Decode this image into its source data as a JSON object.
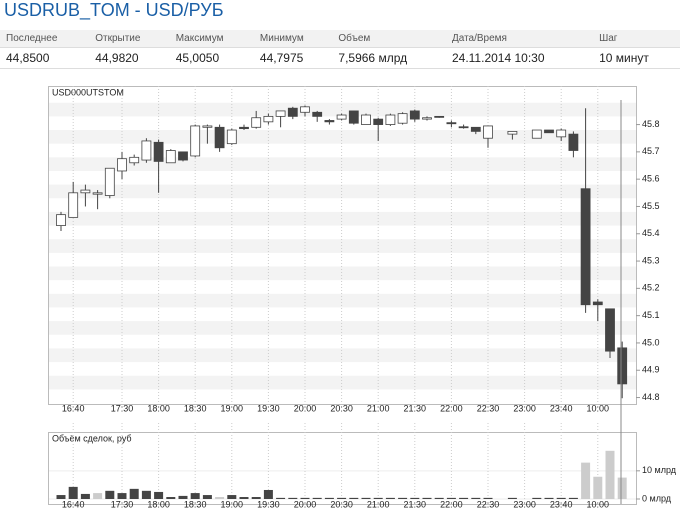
{
  "header": {
    "title": "USDRUB_TOM - USD/РУБ"
  },
  "table": {
    "columns": [
      "Последнее",
      "Открытие",
      "Максимум",
      "Минимум",
      "Объем",
      "Дата/Время",
      "Шаг"
    ],
    "values": [
      "44,8500",
      "44,9820",
      "45,0050",
      "44,7975",
      "7,5966 млрд",
      "24.11.2014 10:30",
      "10 минут"
    ]
  },
  "chart_data": [
    {
      "type": "candlestick",
      "title": "USD000UTSTOM",
      "categories": [
        null,
        "16:40",
        null,
        null,
        null,
        "17:30",
        null,
        null,
        "18:00",
        null,
        null,
        "18:30",
        null,
        null,
        "19:00",
        null,
        null,
        "19:30",
        null,
        null,
        "20:00",
        null,
        null,
        "20:30",
        null,
        null,
        "21:00",
        null,
        null,
        "21:30",
        null,
        null,
        "22:00",
        null,
        null,
        "22:30",
        null,
        null,
        "23:00",
        null,
        null,
        "23:40",
        null,
        null,
        "10:00",
        null,
        null
      ],
      "open": [
        45.43,
        45.46,
        45.55,
        45.545,
        45.54,
        45.63,
        45.66,
        45.67,
        45.735,
        45.66,
        45.7,
        45.685,
        45.79,
        45.79,
        45.73,
        45.79,
        45.79,
        45.81,
        45.83,
        45.86,
        45.845,
        45.845,
        45.815,
        45.82,
        45.85,
        45.8,
        45.82,
        45.8,
        45.805,
        45.85,
        45.82,
        45.83,
        45.807,
        45.792,
        45.79,
        45.75,
        null,
        45.765,
        null,
        45.75,
        45.78,
        45.755,
        45.765,
        45.565,
        45.15,
        45.125,
        44.982
      ],
      "high": [
        45.48,
        45.59,
        45.58,
        45.56,
        45.64,
        45.7,
        45.69,
        45.75,
        45.745,
        45.71,
        45.7,
        45.8,
        45.8,
        45.8,
        45.785,
        45.8,
        45.85,
        45.84,
        45.85,
        45.865,
        45.87,
        45.85,
        45.82,
        45.84,
        45.85,
        45.84,
        45.825,
        45.84,
        45.845,
        45.855,
        45.83,
        45.83,
        45.815,
        45.8,
        45.79,
        45.795,
        null,
        45.775,
        null,
        45.78,
        45.78,
        45.785,
        45.775,
        45.86,
        45.16,
        45.125,
        45.005
      ],
      "low": [
        45.41,
        45.46,
        45.5,
        45.49,
        45.53,
        45.6,
        45.65,
        45.66,
        45.55,
        45.66,
        45.665,
        45.68,
        45.73,
        45.7,
        45.725,
        45.78,
        45.785,
        45.8,
        45.79,
        45.82,
        45.83,
        45.81,
        45.8,
        45.815,
        45.8,
        45.8,
        45.74,
        45.795,
        45.8,
        45.81,
        45.815,
        45.825,
        45.79,
        45.785,
        45.765,
        45.715,
        null,
        45.745,
        null,
        45.75,
        45.77,
        45.74,
        45.68,
        45.11,
        45.08,
        44.945,
        44.7975
      ],
      "close": [
        45.47,
        45.55,
        45.56,
        45.55,
        45.64,
        45.675,
        45.68,
        45.74,
        45.665,
        45.705,
        45.67,
        45.795,
        45.795,
        45.715,
        45.78,
        45.785,
        45.825,
        45.83,
        45.85,
        45.83,
        45.865,
        45.83,
        45.81,
        45.835,
        45.805,
        45.835,
        45.8,
        45.835,
        45.84,
        45.82,
        45.825,
        45.827,
        45.803,
        45.789,
        45.775,
        45.795,
        null,
        45.775,
        null,
        45.78,
        45.77,
        45.78,
        45.705,
        45.14,
        45.14,
        44.97,
        44.85
      ],
      "up_color": "#ffffff",
      "down_color": "#444444",
      "ylim": [
        44.78,
        45.89
      ],
      "yticks": [
        {
          "value": 44.8,
          "label": "44.8"
        },
        44.9,
        {
          "value": 45,
          "label": "45.0"
        },
        45.1,
        45.2,
        45.3,
        45.4,
        45.5,
        45.6,
        45.7,
        45.8
      ],
      "grid": true
    },
    {
      "type": "bar",
      "title": "Объём сделок, руб",
      "categories": [
        null,
        "16:40",
        null,
        null,
        null,
        "17:30",
        null,
        null,
        "18:00",
        null,
        null,
        "18:30",
        null,
        null,
        "19:00",
        null,
        null,
        "19:30",
        null,
        null,
        "20:00",
        null,
        null,
        "20:30",
        null,
        null,
        "21:00",
        null,
        null,
        "21:30",
        null,
        null,
        "22:00",
        null,
        null,
        "22:30",
        null,
        null,
        "23:00",
        null,
        null,
        "23:40",
        null,
        null,
        "10:00",
        null,
        null
      ],
      "values": [
        1.4,
        4.3,
        1.8,
        2.1,
        2.9,
        2.1,
        3.6,
        2.9,
        2.5,
        0.7,
        1.1,
        2.1,
        1.4,
        0.7,
        1.4,
        0.7,
        0.7,
        3.2,
        0.4,
        0.4,
        0.4,
        0.4,
        0.4,
        0.4,
        0.4,
        0.4,
        0.4,
        0.4,
        0.4,
        0.4,
        0.4,
        0.4,
        0.4,
        0.4,
        0.4,
        0.4,
        null,
        0.4,
        null,
        0.4,
        0.4,
        0.4,
        0.4,
        12.9,
        7.9,
        17.1,
        7.5966
      ],
      "colors": [
        "#444",
        "#444",
        "#444",
        "#ccc",
        "#444",
        "#444",
        "#444",
        "#444",
        "#444",
        "#444",
        "#444",
        "#444",
        "#444",
        "#ccc",
        "#444",
        "#444",
        "#444",
        "#444",
        "#444",
        "#444",
        "#444",
        "#444",
        "#444",
        "#444",
        "#444",
        "#444",
        "#444",
        "#444",
        "#444",
        "#444",
        "#444",
        "#444",
        "#444",
        "#444",
        "#444",
        "#444",
        null,
        "#444",
        null,
        "#444",
        "#444",
        "#444",
        "#444",
        "#ccc",
        "#ccc",
        "#ccc",
        "#ccc"
      ],
      "ylim": [
        0,
        22
      ],
      "yticks": [
        {
          "value": 0,
          "label": "0 млрд"
        },
        {
          "value": 10,
          "label": "10 млрд"
        }
      ],
      "grid": true
    }
  ]
}
